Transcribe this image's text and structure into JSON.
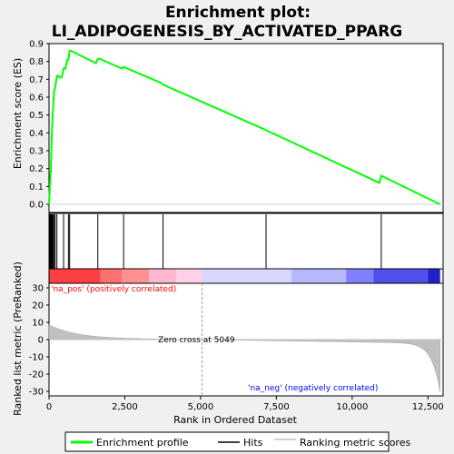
{
  "chart_data": {
    "type": "line",
    "title_line1": "Enrichment plot:",
    "title_line2": "LI_ADIPOGENESIS_BY_ACTIVATED_PPARG",
    "es_panel": {
      "ylabel": "Enrichment score (ES)",
      "ylim": [
        0,
        0.9
      ],
      "yticks": [
        "0.0",
        "0.1",
        "0.2",
        "0.3",
        "0.4",
        "0.5",
        "0.6",
        "0.7",
        "0.8",
        "0.9"
      ],
      "x": [
        0,
        30,
        60,
        90,
        110,
        140,
        170,
        200,
        260,
        300,
        360,
        420,
        480,
        540,
        600,
        640,
        680,
        720,
        1550,
        1610,
        1670,
        2400,
        2460,
        2520,
        3700,
        3760,
        7100,
        7160,
        10900,
        10960,
        12900
      ],
      "y": [
        0,
        0.1,
        0.2,
        0.38,
        0.47,
        0.56,
        0.64,
        0.65,
        0.72,
        0.72,
        0.71,
        0.71,
        0.76,
        0.76,
        0.81,
        0.81,
        0.86,
        0.86,
        0.79,
        0.815,
        0.815,
        0.76,
        0.77,
        0.765,
        0.68,
        0.67,
        0.42,
        0.415,
        0.12,
        0.16,
        0.0
      ]
    },
    "hits": [
      30,
      60,
      90,
      110,
      140,
      170,
      200,
      260,
      480,
      640,
      680,
      1610,
      2460,
      3760,
      7160,
      10960
    ],
    "ranked_panel": {
      "ylabel": "Ranked list metric (PreRanked)",
      "ylim": [
        -30,
        30
      ],
      "yticks": [
        "-30",
        "-20",
        "-10",
        "0",
        "10",
        "20",
        "30"
      ],
      "pos_label": "'na_pos' (positively correlated)",
      "neg_label": "'na_neg' (negatively correlated)",
      "zero_cross_label": "Zero cross at 5049",
      "zero_cross": 5049
    },
    "xlabel": "Rank in Ordered Dataset",
    "xlim": [
      0,
      13000
    ],
    "xticks": [
      "0",
      "2,500",
      "5,000",
      "7,500",
      "10,000",
      "12,500"
    ],
    "xtick_values": [
      0,
      2500,
      5000,
      7500,
      10000,
      12500
    ],
    "n_genes": 12900,
    "legend": {
      "entries": [
        "Enrichment profile",
        "Hits",
        "Ranking metric scores"
      ],
      "colors": [
        "#00ff00",
        "#000000",
        "#c0c0c0"
      ]
    },
    "colors": {
      "es_line": "#00ff00",
      "hit": "#000000",
      "metric": "#c0c0c0",
      "pos_text": "#ff0000",
      "neg_text": "#0000ff"
    }
  }
}
